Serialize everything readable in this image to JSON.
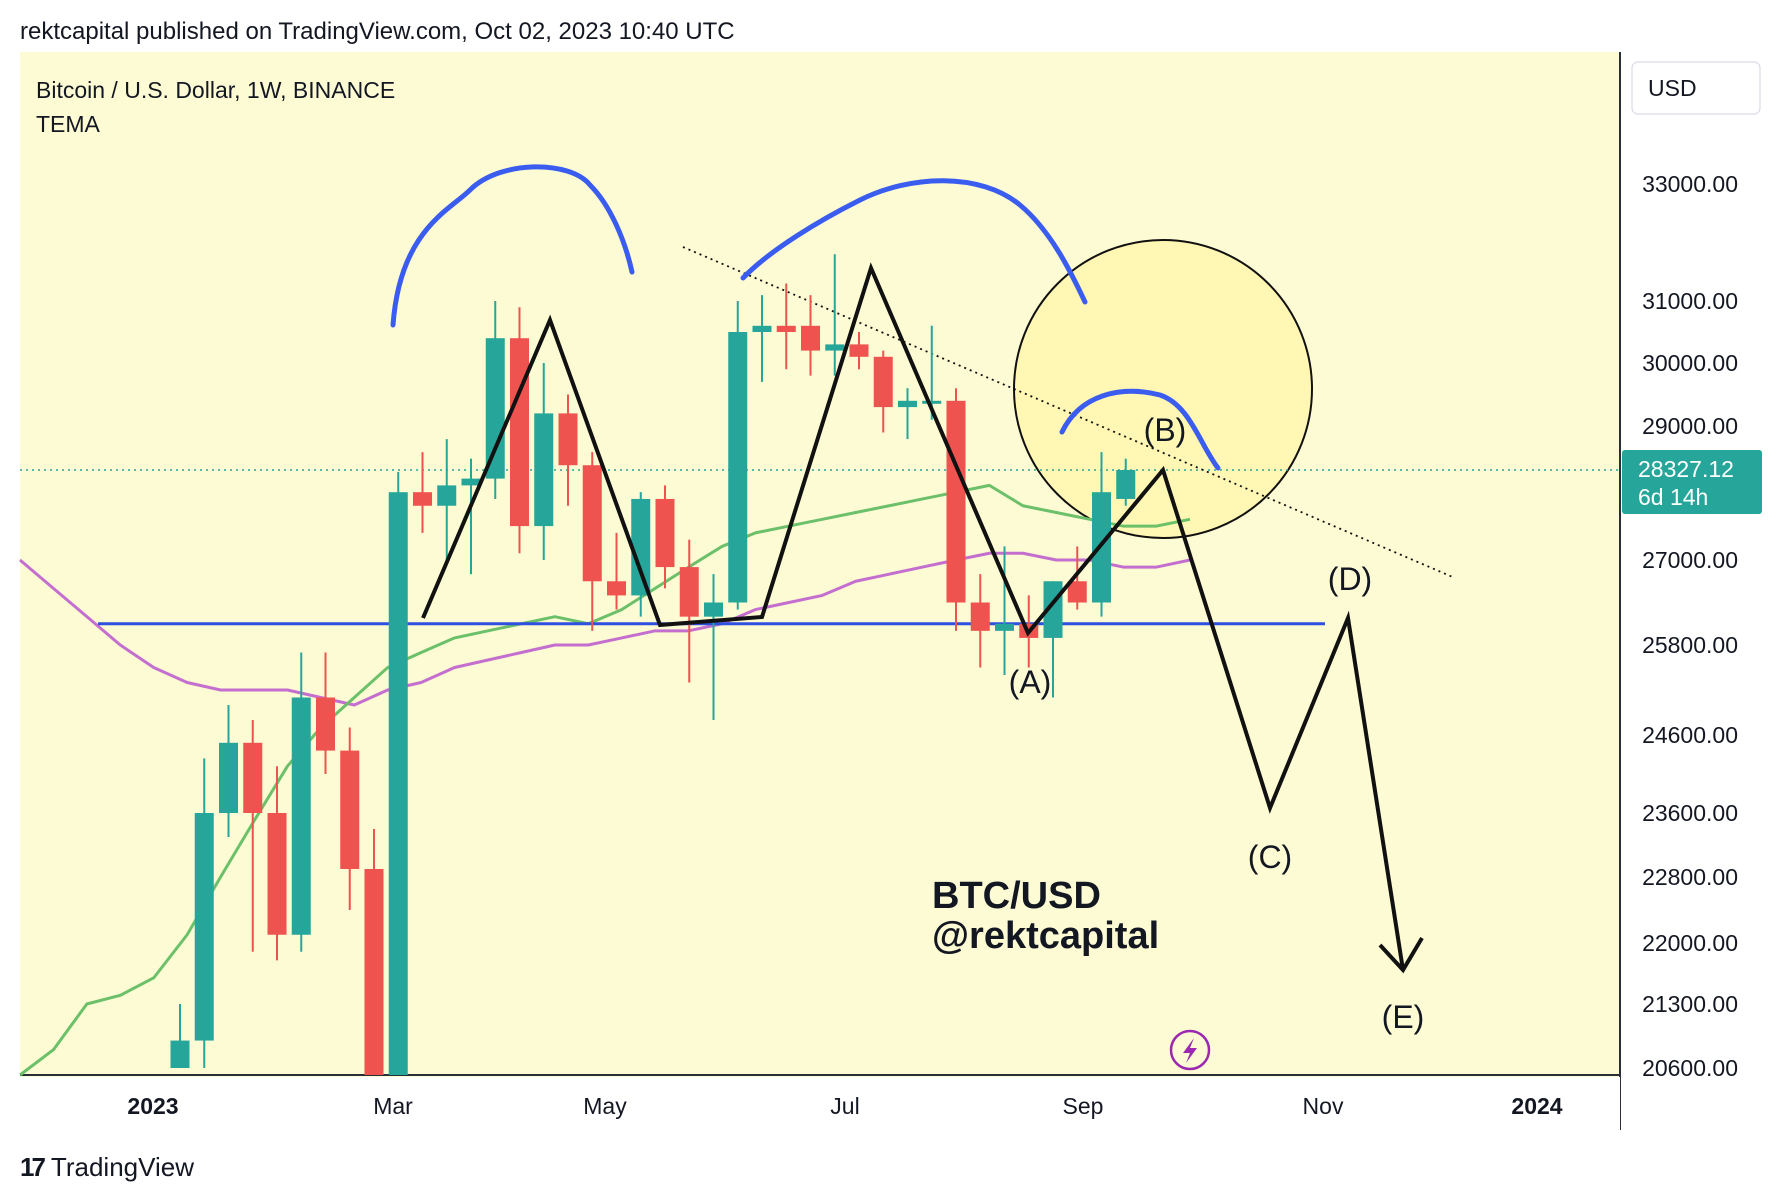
{
  "caption": "rektcapital published on TradingView.com, Oct 02, 2023 10:40 UTC",
  "legend": {
    "symbol": "Bitcoin / U.S. Dollar, 1W, BINANCE",
    "indicator": "TEMA"
  },
  "currency_button": "USD",
  "price_tag": {
    "price": "28327.12",
    "countdown": "6d 14h"
  },
  "watermark": {
    "line1": "BTC/USD",
    "line2": "@rektcapital"
  },
  "footer_brand": "TradingView",
  "colors": {
    "background": "#fdfbd4",
    "up": "#26a69a",
    "down": "#ef5350",
    "support": "#2e4fe0",
    "arc": "#3a5df0",
    "tema_green": "#6cc06a",
    "tema_purple": "#c46fcf",
    "highlight_circle": "#fff6a8"
  },
  "wave_labels": [
    "(A)",
    "(B)",
    "(C)",
    "(D)",
    "(E)"
  ],
  "chart_data": {
    "type": "candlestick",
    "title": "Bitcoin / U.S. Dollar, 1W, BINANCE",
    "x_ticks": [
      "2023",
      "Mar",
      "May",
      "Jul",
      "Sep",
      "Nov",
      "2024"
    ],
    "y_ticks": [
      33000,
      31000,
      30000,
      29000,
      27000,
      25800,
      24600,
      23600,
      22800,
      22000,
      21300,
      20600
    ],
    "ylim": [
      20600,
      34000
    ],
    "support_level": 26100,
    "candles": [
      {
        "week": "2023-02-13",
        "open": 20600,
        "high": 21300,
        "low": 20600,
        "close": 20900
      },
      {
        "week": "2023-02-20",
        "open": 20900,
        "high": 24300,
        "low": 20600,
        "close": 23600
      },
      {
        "week": "2023-02-27",
        "open": 23600,
        "high": 25000,
        "low": 23300,
        "close": 24500
      },
      {
        "week": "2023-03-06",
        "open": 24500,
        "high": 24800,
        "low": 21900,
        "close": 23600
      },
      {
        "week": "2023-03-13",
        "open": 23600,
        "high": 24200,
        "low": 21800,
        "close": 22100
      },
      {
        "week": "2023-03-20",
        "open": 22100,
        "high": 25700,
        "low": 21900,
        "close": 25100
      },
      {
        "week": "2023-03-27",
        "open": 25100,
        "high": 25700,
        "low": 24100,
        "close": 24400
      },
      {
        "week": "2023-04-03",
        "open": 24400,
        "high": 24700,
        "low": 22400,
        "close": 22900
      },
      {
        "week": "2023-04-10",
        "open": 22900,
        "high": 23400,
        "low": 19600,
        "close": 20400
      },
      {
        "week": "2023-04-17",
        "open": 20400,
        "high": 28300,
        "low": 19600,
        "close": 28000
      },
      {
        "week": "2023-04-24",
        "open": 28000,
        "high": 28600,
        "low": 27400,
        "close": 27800
      },
      {
        "week": "2023-05-01",
        "open": 27800,
        "high": 28800,
        "low": 27000,
        "close": 28100
      },
      {
        "week": "2023-05-08",
        "open": 28100,
        "high": 28500,
        "low": 26800,
        "close": 28200
      },
      {
        "week": "2023-05-15",
        "open": 28200,
        "high": 31000,
        "low": 27900,
        "close": 30400
      },
      {
        "week": "2023-05-22",
        "open": 30400,
        "high": 30900,
        "low": 27100,
        "close": 27500
      },
      {
        "week": "2023-05-29",
        "open": 27500,
        "high": 30000,
        "low": 27000,
        "close": 29200
      },
      {
        "week": "2023-06-05",
        "open": 29200,
        "high": 29500,
        "low": 27800,
        "close": 28400
      },
      {
        "week": "2023-06-12",
        "open": 28400,
        "high": 28600,
        "low": 26000,
        "close": 26700
      },
      {
        "week": "2023-06-19",
        "open": 26700,
        "high": 27400,
        "low": 26300,
        "close": 26500
      },
      {
        "week": "2023-06-26",
        "open": 26500,
        "high": 28000,
        "low": 26200,
        "close": 27900
      },
      {
        "week": "2023-07-03",
        "open": 27900,
        "high": 28100,
        "low": 26600,
        "close": 26900
      },
      {
        "week": "2023-07-10",
        "open": 26900,
        "high": 27300,
        "low": 25300,
        "close": 26200
      },
      {
        "week": "2023-07-17",
        "open": 26200,
        "high": 26800,
        "low": 24800,
        "close": 26400
      },
      {
        "week": "2023-07-24",
        "open": 26400,
        "high": 31000,
        "low": 26300,
        "close": 30500
      },
      {
        "week": "2023-07-31",
        "open": 30500,
        "high": 31100,
        "low": 29700,
        "close": 30600
      },
      {
        "week": "2023-08-07",
        "open": 30600,
        "high": 31300,
        "low": 29900,
        "close": 30500
      },
      {
        "week": "2023-08-14",
        "open": 30600,
        "high": 31100,
        "low": 29800,
        "close": 30200
      },
      {
        "week": "2023-08-21",
        "open": 30200,
        "high": 31800,
        "low": 29800,
        "close": 30300
      },
      {
        "week": "2023-08-28",
        "open": 30300,
        "high": 30500,
        "low": 29900,
        "close": 30100
      },
      {
        "week": "2023-09-04",
        "open": 30100,
        "high": 30200,
        "low": 28900,
        "close": 29300
      },
      {
        "week": "2023-09-11",
        "open": 29300,
        "high": 29600,
        "low": 28800,
        "close": 29400
      },
      {
        "week": "2023-09-18",
        "open": 29400,
        "high": 30600,
        "low": 29100,
        "close": 29400
      },
      {
        "week": "2023-09-25",
        "open": 29400,
        "high": 29600,
        "low": 26000,
        "close": 26400
      },
      {
        "week": "2023-10-02",
        "open": 26400,
        "high": 26800,
        "low": 25500,
        "close": 26000
      },
      {
        "week": "2023-10-09",
        "open": 26000,
        "high": 27200,
        "low": 25400,
        "close": 26100
      },
      {
        "week": "2023-10-16",
        "open": 26100,
        "high": 26500,
        "low": 25500,
        "close": 25900
      },
      {
        "week": "2023-10-23",
        "open": 25900,
        "high": 26700,
        "low": 25100,
        "close": 26700
      },
      {
        "week": "2023-10-30",
        "open": 26700,
        "high": 27200,
        "low": 26300,
        "close": 26400
      },
      {
        "week": "2023-11-06",
        "open": 26400,
        "high": 28600,
        "low": 26200,
        "close": 28000
      },
      {
        "week": "2023-11-13",
        "open": 27900,
        "high": 28500,
        "low": 27800,
        "close": 28327
      }
    ],
    "tema_green": [
      20400,
      20800,
      21300,
      21400,
      21600,
      22100,
      22800,
      23500,
      24200,
      24700,
      25100,
      25500,
      25700,
      25900,
      26000,
      26100,
      26200,
      26100,
      26300,
      26600,
      26900,
      27200,
      27400,
      27500,
      27600,
      27700,
      27800,
      27900,
      28000,
      28100,
      27800,
      27700,
      27600,
      27500,
      27500,
      27600
    ],
    "tema_purple": [
      27000,
      26600,
      26200,
      25800,
      25500,
      25300,
      25200,
      25200,
      25200,
      25100,
      25000,
      25200,
      25300,
      25500,
      25600,
      25700,
      25800,
      25800,
      25900,
      26000,
      26000,
      26100,
      26300,
      26400,
      26500,
      26700,
      26800,
      26900,
      27000,
      27100,
      27100,
      27000,
      27000,
      26900,
      26900,
      27000
    ]
  }
}
